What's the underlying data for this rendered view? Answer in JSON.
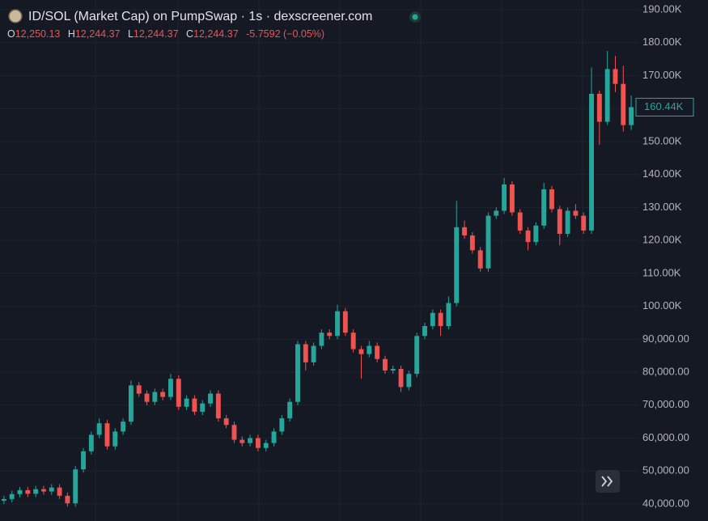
{
  "chart_data": {
    "type": "candlestick",
    "title": "ID/SOL (Market Cap) on PumpSwap · 1s · dexscreener.com",
    "ohlc_legend": {
      "open_label": "O",
      "open": "12,250.13",
      "high_label": "H",
      "high": "12,244.37",
      "low_label": "L",
      "low": "12,244.37",
      "close_label": "C",
      "close": "12,244.37",
      "change": "-5.7592 (−0.05%)"
    },
    "up_color": "#26a69a",
    "down_color": "#ef5350",
    "open": [
      41000,
      41500,
      43000,
      44200,
      43100,
      44500,
      43800,
      45000,
      42500,
      40200,
      50500,
      56000,
      61000,
      64500,
      57500,
      62000,
      65000,
      76000,
      73500,
      71000,
      74000,
      72500,
      78000,
      69500,
      72000,
      68000,
      70500,
      73500,
      66000,
      64000,
      59500,
      58500,
      60000,
      57000,
      58500,
      62000,
      66000,
      71000,
      88500,
      83000,
      88000,
      92000,
      91000,
      98500,
      92000,
      87000,
      85500,
      88000,
      84000,
      80500,
      81000,
      75500,
      79500,
      91000,
      94000,
      98000,
      94000,
      101000,
      124000,
      121500,
      117000,
      111500,
      127500,
      129000,
      137000,
      128500,
      123000,
      119500,
      124500,
      135500,
      129500,
      122000,
      129000,
      127500,
      123000,
      164500,
      156000,
      172000,
      167500,
      155000
    ],
    "high": [
      42500,
      44000,
      45200,
      45200,
      45500,
      45500,
      46000,
      46000,
      43500,
      51500,
      57000,
      62000,
      66000,
      65500,
      63000,
      66000,
      77500,
      77000,
      74500,
      75000,
      75000,
      79500,
      79000,
      73000,
      73000,
      71500,
      74500,
      74500,
      67000,
      65000,
      60500,
      61000,
      61000,
      59500,
      63000,
      67000,
      72000,
      89500,
      89500,
      89000,
      93000,
      93000,
      100500,
      99500,
      93000,
      88000,
      89500,
      89000,
      85000,
      82000,
      82000,
      80500,
      92000,
      95000,
      99000,
      99000,
      103000,
      132000,
      126000,
      122500,
      118000,
      128500,
      130000,
      139000,
      138000,
      129500,
      124000,
      125500,
      137500,
      136500,
      130500,
      130000,
      131000,
      128500,
      172500,
      165500,
      177500,
      176000,
      173000,
      164000
    ],
    "low": [
      40000,
      40500,
      42000,
      42100,
      42100,
      42800,
      42800,
      41500,
      39200,
      39200,
      49500,
      55000,
      60000,
      56500,
      56500,
      61000,
      64000,
      72500,
      70000,
      70000,
      71500,
      71500,
      68500,
      68500,
      67000,
      67000,
      69500,
      65000,
      63000,
      58500,
      57500,
      57500,
      56000,
      56000,
      57500,
      61000,
      65000,
      70000,
      80500,
      82000,
      87000,
      90000,
      90000,
      91000,
      86000,
      78000,
      84500,
      83000,
      79500,
      79500,
      74000,
      74500,
      78500,
      90000,
      93000,
      91000,
      93000,
      100000,
      120500,
      116000,
      110500,
      110500,
      126500,
      128000,
      127500,
      122000,
      117000,
      118500,
      123500,
      128500,
      118500,
      121000,
      126500,
      122000,
      122000,
      149000,
      155000,
      165000,
      153000,
      153500
    ],
    "close": [
      41500,
      43000,
      44200,
      43100,
      44500,
      43800,
      45000,
      42500,
      40200,
      50500,
      56000,
      61000,
      64500,
      57500,
      62000,
      65000,
      76000,
      73500,
      71000,
      74000,
      72500,
      78000,
      69500,
      72000,
      68000,
      70500,
      73500,
      66000,
      64000,
      59500,
      58500,
      60000,
      57000,
      58500,
      62000,
      66000,
      71000,
      88500,
      83000,
      88000,
      92000,
      91000,
      98500,
      92000,
      87000,
      85500,
      88000,
      84000,
      80500,
      81000,
      75500,
      79500,
      91000,
      94000,
      98000,
      94000,
      101000,
      124000,
      121500,
      117000,
      111500,
      127500,
      129000,
      137000,
      128500,
      123000,
      119500,
      124500,
      135500,
      129500,
      122000,
      129000,
      127500,
      123000,
      164500,
      156000,
      172000,
      167500,
      155000,
      160440
    ],
    "last_price": {
      "value": 160440,
      "label": "160.44K"
    },
    "ylim": [
      34840,
      192960
    ],
    "yticks": [
      {
        "value": 40000,
        "label": "40,000.00"
      },
      {
        "value": 50000,
        "label": "50,000.00"
      },
      {
        "value": 60000,
        "label": "60,000.00"
      },
      {
        "value": 70000,
        "label": "70,000.00"
      },
      {
        "value": 80000,
        "label": "80,000.00"
      },
      {
        "value": 90000,
        "label": "90,000.00"
      },
      {
        "value": 100000,
        "label": "100.00K"
      },
      {
        "value": 110000,
        "label": "110.00K"
      },
      {
        "value": 120000,
        "label": "120.00K"
      },
      {
        "value": 130000,
        "label": "130.00K"
      },
      {
        "value": 140000,
        "label": "140.00K"
      },
      {
        "value": 150000,
        "label": "150.00K"
      },
      {
        "value": 160000,
        "label": "160.00K"
      },
      {
        "value": 170000,
        "label": "170.00K"
      },
      {
        "value": 180000,
        "label": "180.00K"
      },
      {
        "value": 190000,
        "label": "190.00K"
      }
    ],
    "grid": true
  }
}
